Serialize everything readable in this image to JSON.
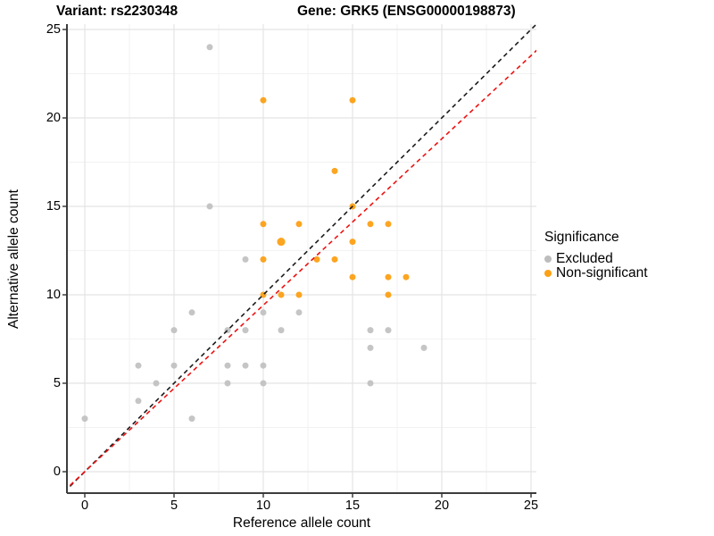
{
  "header": {
    "variant_title": "Variant: rs2230348",
    "gene_title": "Gene: GRK5 (ENSG00000198873)"
  },
  "legend": {
    "title": "Significance",
    "items": [
      {
        "label": "Excluded",
        "color": "#bdbdbd"
      },
      {
        "label": "Non-significant",
        "color": "#fca015"
      }
    ]
  },
  "colors": {
    "excluded_point": "#c2c2c2",
    "nonsignificant_point": "#fca015",
    "identity_line": "#1a1a1a",
    "ratio_line": "#ee1111",
    "major_grid": "#e4e4e4",
    "minor_grid": "#f2f2f2",
    "axis_line": "#3c3c3c",
    "tick_mark": "#333333"
  },
  "chart_data": {
    "type": "scatter",
    "title": "Variant: rs2230348   Gene: GRK5 (ENSG00000198873)",
    "xlabel": "Reference allele count",
    "ylabel": "Alternative allele count",
    "xlim": [
      -1.15,
      25.4
    ],
    "ylim": [
      -1.25,
      25.4
    ],
    "x_ticks": [
      0,
      5,
      10,
      15,
      20,
      25
    ],
    "y_ticks": [
      0,
      5,
      10,
      15,
      20,
      25
    ],
    "minor_ticks": [
      2.5,
      7.5,
      12.5,
      17.5,
      22.5
    ],
    "grid": "major+minor",
    "legend_position": "right",
    "series": [
      {
        "name": "Excluded",
        "color": "#c2c2c2",
        "points": [
          [
            0,
            3
          ],
          [
            3,
            4
          ],
          [
            3,
            6
          ],
          [
            4,
            5
          ],
          [
            5,
            6
          ],
          [
            5,
            8
          ],
          [
            6,
            3
          ],
          [
            6,
            9
          ],
          [
            7,
            15
          ],
          [
            7,
            24
          ],
          [
            8,
            5
          ],
          [
            8,
            6
          ],
          [
            8,
            8
          ],
          [
            9,
            6
          ],
          [
            9,
            8
          ],
          [
            9,
            12
          ],
          [
            10,
            5
          ],
          [
            10,
            6
          ],
          [
            10,
            9
          ],
          [
            11,
            8
          ],
          [
            12,
            9
          ],
          [
            16,
            5
          ],
          [
            16,
            7
          ],
          [
            16,
            8
          ],
          [
            17,
            8
          ],
          [
            19,
            7
          ]
        ]
      },
      {
        "name": "Non-significant",
        "color": "#fca015",
        "points": [
          [
            10,
            10
          ],
          [
            10,
            12
          ],
          [
            10,
            14
          ],
          [
            10,
            21
          ],
          [
            11,
            10
          ],
          [
            11,
            13,
            1.3
          ],
          [
            12,
            10
          ],
          [
            12,
            14
          ],
          [
            13,
            12
          ],
          [
            14,
            12
          ],
          [
            14,
            17
          ],
          [
            15,
            11
          ],
          [
            15,
            13
          ],
          [
            15,
            15
          ],
          [
            15,
            21
          ],
          [
            16,
            14
          ],
          [
            17,
            10
          ],
          [
            17,
            11
          ],
          [
            17,
            14
          ],
          [
            18,
            11
          ]
        ]
      }
    ],
    "lines": [
      {
        "name": "identity-line",
        "color": "#1a1a1a",
        "dashed": true,
        "x1": -1.15,
        "y1": -1.15,
        "x2": 25.4,
        "y2": 25.4
      },
      {
        "name": "expected-ratio-line",
        "color": "#ee1111",
        "dashed": true,
        "x1": -1.15,
        "y1": -1.08,
        "x2": 25.4,
        "y2": 23.9
      }
    ]
  }
}
